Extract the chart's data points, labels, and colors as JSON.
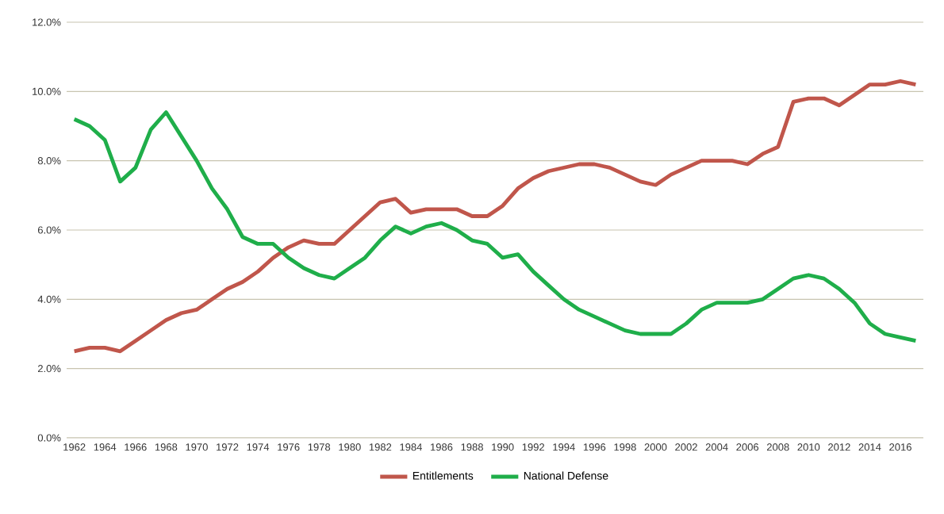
{
  "chart_data": {
    "type": "line",
    "categories": [
      "1962",
      null,
      "1964",
      null,
      "1966",
      null,
      "1968",
      null,
      "1970",
      null,
      "1972",
      null,
      "1974",
      null,
      "1976",
      null,
      "1978",
      null,
      "1980",
      null,
      "1982",
      null,
      "1984",
      null,
      "1986",
      null,
      "1988",
      null,
      "1990",
      null,
      "1992",
      null,
      "1994",
      null,
      "1996",
      null,
      "1998",
      null,
      "2000",
      null,
      "2002",
      null,
      "2004",
      null,
      "2006",
      null,
      "2008",
      null,
      "2010",
      null,
      "2012",
      null,
      "2014",
      null,
      "2016",
      null
    ],
    "series": [
      {
        "name": "Entitlements",
        "color": "#c0564b",
        "values": [
          2.5,
          2.6,
          2.6,
          2.5,
          2.8,
          3.1,
          3.4,
          3.6,
          3.7,
          4.0,
          4.3,
          4.5,
          4.8,
          5.2,
          5.5,
          5.7,
          5.6,
          5.6,
          6.0,
          6.4,
          6.8,
          6.9,
          6.5,
          6.6,
          6.6,
          6.6,
          6.4,
          6.4,
          6.7,
          7.2,
          7.5,
          7.7,
          7.8,
          7.9,
          7.9,
          7.8,
          7.6,
          7.4,
          7.3,
          7.6,
          7.8,
          8.0,
          8.0,
          8.0,
          7.9,
          8.2,
          8.4,
          9.7,
          9.8,
          9.8,
          9.6,
          9.9,
          10.2,
          10.2,
          10.3,
          10.2
        ]
      },
      {
        "name": "National Defense",
        "color": "#1fae4a",
        "values": [
          9.2,
          9.0,
          8.6,
          7.4,
          7.8,
          8.9,
          9.4,
          8.7,
          8.0,
          7.2,
          6.6,
          5.8,
          5.6,
          5.6,
          5.2,
          4.9,
          4.7,
          4.6,
          4.9,
          5.2,
          5.7,
          6.1,
          5.9,
          6.1,
          6.2,
          6.0,
          5.7,
          5.6,
          5.2,
          5.3,
          4.8,
          4.4,
          4.0,
          3.7,
          3.5,
          3.3,
          3.1,
          3.0,
          3.0,
          3.0,
          3.3,
          3.7,
          3.9,
          3.9,
          3.9,
          4.0,
          4.3,
          4.6,
          4.7,
          4.6,
          4.3,
          3.9,
          3.3,
          3.0,
          2.9,
          2.8
        ]
      }
    ],
    "ylim": [
      0,
      12
    ],
    "yticks": [
      {
        "value": 0,
        "label": "0.0%"
      },
      {
        "value": 2,
        "label": "2.0%"
      },
      {
        "value": 4,
        "label": "4.0%"
      },
      {
        "value": 6,
        "label": "6.0%"
      },
      {
        "value": 8,
        "label": "8.0%"
      },
      {
        "value": 10,
        "label": "10.0%"
      },
      {
        "value": 12,
        "label": "12.0%"
      }
    ],
    "grid": "y",
    "legend": "bottom",
    "marker": "none",
    "line_style": "solid"
  }
}
